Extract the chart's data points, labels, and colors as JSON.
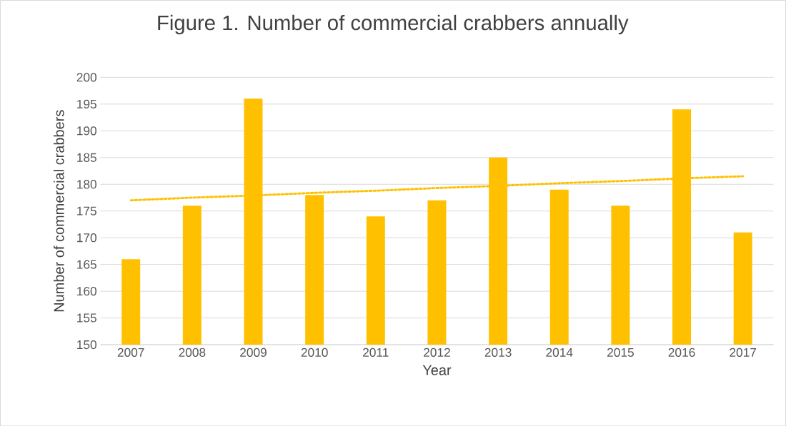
{
  "chart_data": {
    "type": "bar",
    "title": "Figure 1.  Number of commercial crabbers annually",
    "xlabel": "Year",
    "ylabel": "Number of commercial crabbers",
    "categories": [
      "2007",
      "2008",
      "2009",
      "2010",
      "2011",
      "2012",
      "2013",
      "2014",
      "2015",
      "2016",
      "2017"
    ],
    "series": [
      {
        "color": "#ffc000",
        "values": [
          166,
          176,
          196,
          178,
          174,
          177,
          185,
          179,
          176,
          194,
          171
        ]
      },
      {
        "type": "line",
        "color": "#ffc000",
        "line_style": "dotted",
        "values": [
          177.0,
          177.5,
          177.9,
          178.4,
          178.8,
          179.3,
          179.7,
          180.2,
          180.6,
          181.1,
          181.5
        ]
      }
    ],
    "ylim": [
      150,
      200
    ],
    "yticks": [
      150,
      155,
      160,
      165,
      170,
      175,
      180,
      185,
      190,
      195,
      200
    ],
    "grid": "y"
  }
}
